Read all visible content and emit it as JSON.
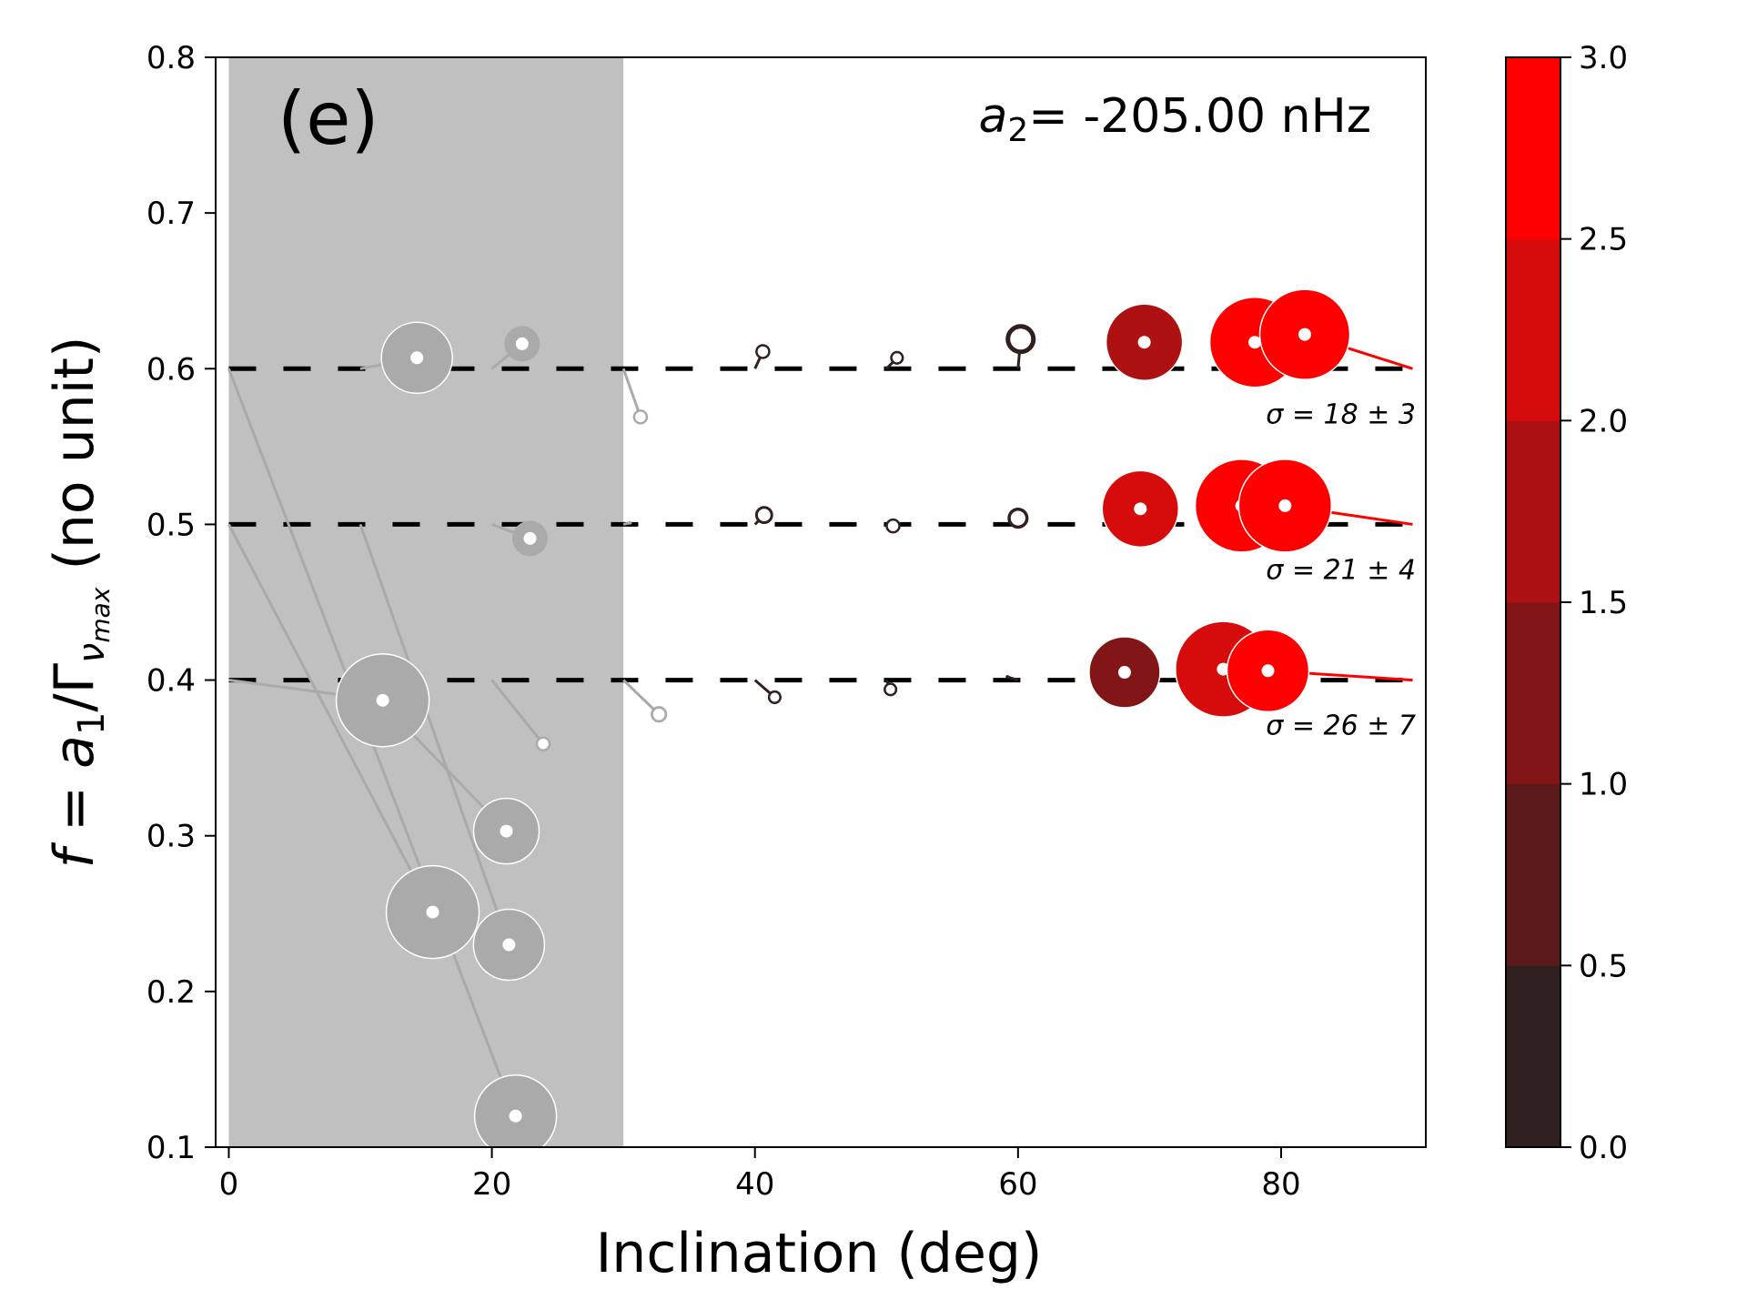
{
  "panel_label": "(e)",
  "annotation": {
    "var": "a",
    "sub": "2",
    "text": "= -205.00 nHz"
  },
  "colorbar": {
    "ticks": [
      "0.0",
      "0.5",
      "1.0",
      "1.5",
      "2.0",
      "2.5",
      "3.0"
    ],
    "bins": [
      "#302020",
      "#5a1a1a",
      "#821616",
      "#ad1111",
      "#d60c0c",
      "#ff0000"
    ]
  },
  "chart_data": {
    "type": "scatter",
    "title": "",
    "xlabel": "Inclination (deg)",
    "ylabel": {
      "prefix": "f",
      "eq": " = ",
      "a": "a",
      "a_sub": "1",
      "slash": "/Γ",
      "gamma_sub": "ν",
      "gamma_subsub": "max",
      "suffix": "  (no unit)"
    },
    "xlim": [
      -1,
      91
    ],
    "ylim": [
      0.1,
      0.8
    ],
    "xticks": [
      0,
      20,
      40,
      60,
      80
    ],
    "xtick_labels": [
      "0",
      "20",
      "40",
      "60",
      "80"
    ],
    "yticks": [
      0.1,
      0.2,
      0.3,
      0.4,
      0.5,
      0.6,
      0.7,
      0.8
    ],
    "ytick_labels": [
      "0.1",
      "0.2",
      "0.3",
      "0.4",
      "0.5",
      "0.6",
      "0.7",
      "0.8"
    ],
    "excluded_region": {
      "x": [
        0,
        30
      ],
      "color": "#c0c0c0"
    },
    "true_value_lines": [
      {
        "f": 0.6,
        "label": "σ = 18 ± 3"
      },
      {
        "f": 0.5,
        "label": "σ = 21 ± 4"
      },
      {
        "f": 0.4,
        "label": "σ = 26 ± 7"
      }
    ],
    "points": [
      {
        "x_true": 0,
        "f_true": 0.6,
        "x": 21.8,
        "f": 0.12,
        "size": 3.0,
        "color": "#aaaaaa"
      },
      {
        "x_true": 10,
        "f_true": 0.6,
        "x": 14.3,
        "f": 0.607,
        "size": 2.6,
        "color": "#aaaaaa"
      },
      {
        "x_true": 20,
        "f_true": 0.6,
        "x": 22.3,
        "f": 0.616,
        "size": 1.3,
        "color": "#aaaaaa"
      },
      {
        "x_true": 30,
        "f_true": 0.6,
        "x": 31.3,
        "f": 0.569,
        "size": 0.5,
        "color": "#aaaaaa",
        "open": true
      },
      {
        "x_true": 40,
        "f_true": 0.6,
        "x": 40.6,
        "f": 0.611,
        "size": 0.5,
        "color": "#302020",
        "open": true
      },
      {
        "x_true": 50,
        "f_true": 0.6,
        "x": 50.8,
        "f": 0.607,
        "size": 0.45,
        "color": "#302020",
        "open": true
      },
      {
        "x_true": 60,
        "f_true": 0.6,
        "x": 60.2,
        "f": 0.619,
        "size": 1.0,
        "color": "#302020",
        "open": true
      },
      {
        "x_true": 70,
        "f_true": 0.6,
        "x": 69.6,
        "f": 0.617,
        "size": 2.8,
        "color": "#ad1111"
      },
      {
        "x_true": 80,
        "f_true": 0.6,
        "x": 78.0,
        "f": 0.617,
        "size": 3.3,
        "color": "#ff0000"
      },
      {
        "x_true": 90,
        "f_true": 0.6,
        "x": 81.8,
        "f": 0.622,
        "size": 3.3,
        "color": "#ff0000"
      },
      {
        "x_true": 0,
        "f_true": 0.5,
        "x": 15.5,
        "f": 0.251,
        "size": 3.4,
        "color": "#aaaaaa"
      },
      {
        "x_true": 10,
        "f_true": 0.5,
        "x": 21.3,
        "f": 0.23,
        "size": 2.6,
        "color": "#aaaaaa"
      },
      {
        "x_true": 20,
        "f_true": 0.5,
        "x": 22.9,
        "f": 0.491,
        "size": 1.3,
        "color": "#aaaaaa"
      },
      {
        "x_true": 30,
        "f_true": 0.5,
        "x": 30.5,
        "f": 0.501,
        "size": 0.1,
        "color": "#aaaaaa"
      },
      {
        "x_true": 40,
        "f_true": 0.5,
        "x": 40.7,
        "f": 0.506,
        "size": 0.6,
        "color": "#302020",
        "open": true
      },
      {
        "x_true": 50,
        "f_true": 0.5,
        "x": 50.5,
        "f": 0.499,
        "size": 0.5,
        "color": "#302020",
        "open": true
      },
      {
        "x_true": 60,
        "f_true": 0.5,
        "x": 60.0,
        "f": 0.504,
        "size": 0.7,
        "color": "#302020",
        "open": true
      },
      {
        "x_true": 70,
        "f_true": 0.5,
        "x": 69.3,
        "f": 0.51,
        "size": 2.8,
        "color": "#d60c0c"
      },
      {
        "x_true": 80,
        "f_true": 0.5,
        "x": 77.0,
        "f": 0.512,
        "size": 3.4,
        "color": "#ff0000"
      },
      {
        "x_true": 90,
        "f_true": 0.5,
        "x": 80.3,
        "f": 0.512,
        "size": 3.4,
        "color": "#ff0000"
      },
      {
        "x_true": 0,
        "f_true": 0.4,
        "x": 11.7,
        "f": 0.387,
        "size": 3.4,
        "color": "#aaaaaa"
      },
      {
        "x_true": 10,
        "f_true": 0.4,
        "x": 21.1,
        "f": 0.303,
        "size": 2.4,
        "color": "#aaaaaa"
      },
      {
        "x_true": 20,
        "f_true": 0.4,
        "x": 23.9,
        "f": 0.359,
        "size": 0.5,
        "color": "#aaaaaa",
        "open": true
      },
      {
        "x_true": 30,
        "f_true": 0.4,
        "x": 32.7,
        "f": 0.378,
        "size": 0.55,
        "color": "#aaaaaa",
        "open": true
      },
      {
        "x_true": 40,
        "f_true": 0.4,
        "x": 41.5,
        "f": 0.389,
        "size": 0.45,
        "color": "#302020",
        "open": true
      },
      {
        "x_true": 50,
        "f_true": 0.4,
        "x": 50.3,
        "f": 0.394,
        "size": 0.45,
        "color": "#302020",
        "open": true
      },
      {
        "x_true": 60,
        "f_true": 0.4,
        "x": 59.2,
        "f": 0.402,
        "size": 0.1,
        "color": "#302020"
      },
      {
        "x_true": 70,
        "f_true": 0.4,
        "x": 68.1,
        "f": 0.405,
        "size": 2.6,
        "color": "#821616"
      },
      {
        "x_true": 80,
        "f_true": 0.4,
        "x": 75.6,
        "f": 0.407,
        "size": 3.5,
        "color": "#d60c0c"
      },
      {
        "x_true": 90,
        "f_true": 0.4,
        "x": 79.0,
        "f": 0.406,
        "size": 3.0,
        "color": "#ff0000"
      }
    ]
  }
}
